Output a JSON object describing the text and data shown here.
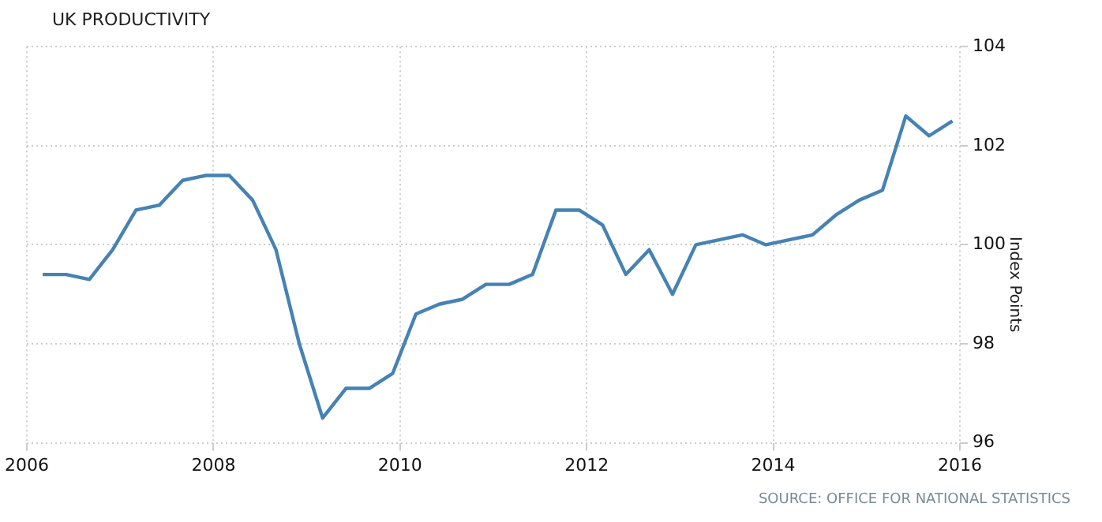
{
  "chart_data": {
    "type": "line",
    "title": "UK PRODUCTIVITY",
    "ylabel": "Index Points",
    "annotations": [
      "SOURCE: OFFICE FOR NATIONAL STATISTICS"
    ],
    "x": [
      2006.17,
      2006.42,
      2006.67,
      2006.92,
      2007.17,
      2007.42,
      2007.67,
      2007.92,
      2008.17,
      2008.42,
      2008.67,
      2008.92,
      2009.17,
      2009.42,
      2009.67,
      2009.92,
      2010.17,
      2010.42,
      2010.67,
      2010.92,
      2011.17,
      2011.42,
      2011.67,
      2011.92,
      2012.17,
      2012.42,
      2012.67,
      2012.92,
      2013.17,
      2013.42,
      2013.67,
      2013.92,
      2014.17,
      2014.42,
      2014.67,
      2014.92,
      2015.17,
      2015.42,
      2015.67,
      2015.92
    ],
    "series": [
      {
        "color": "#4682b4",
        "values": [
          99.4,
          99.4,
          99.3,
          99.9,
          100.7,
          100.8,
          101.3,
          101.4,
          101.4,
          100.9,
          99.9,
          98.0,
          96.5,
          97.1,
          97.1,
          97.4,
          98.6,
          98.8,
          98.9,
          99.2,
          99.2,
          99.4,
          100.7,
          100.7,
          100.4,
          99.4,
          99.9,
          99.0,
          100.0,
          100.1,
          100.2,
          100.0,
          100.1,
          100.2,
          100.6,
          100.9,
          101.1,
          102.6,
          102.2,
          102.5
        ]
      }
    ],
    "xlim": [
      2006,
      2016
    ],
    "xticks": [
      2006,
      2008,
      2010,
      2012,
      2014,
      2016
    ],
    "ylim": [
      96,
      104
    ],
    "yticks": [
      96,
      98,
      100,
      102,
      104
    ],
    "grid": true,
    "legend": false,
    "marker": "none",
    "line_style": "solid"
  }
}
